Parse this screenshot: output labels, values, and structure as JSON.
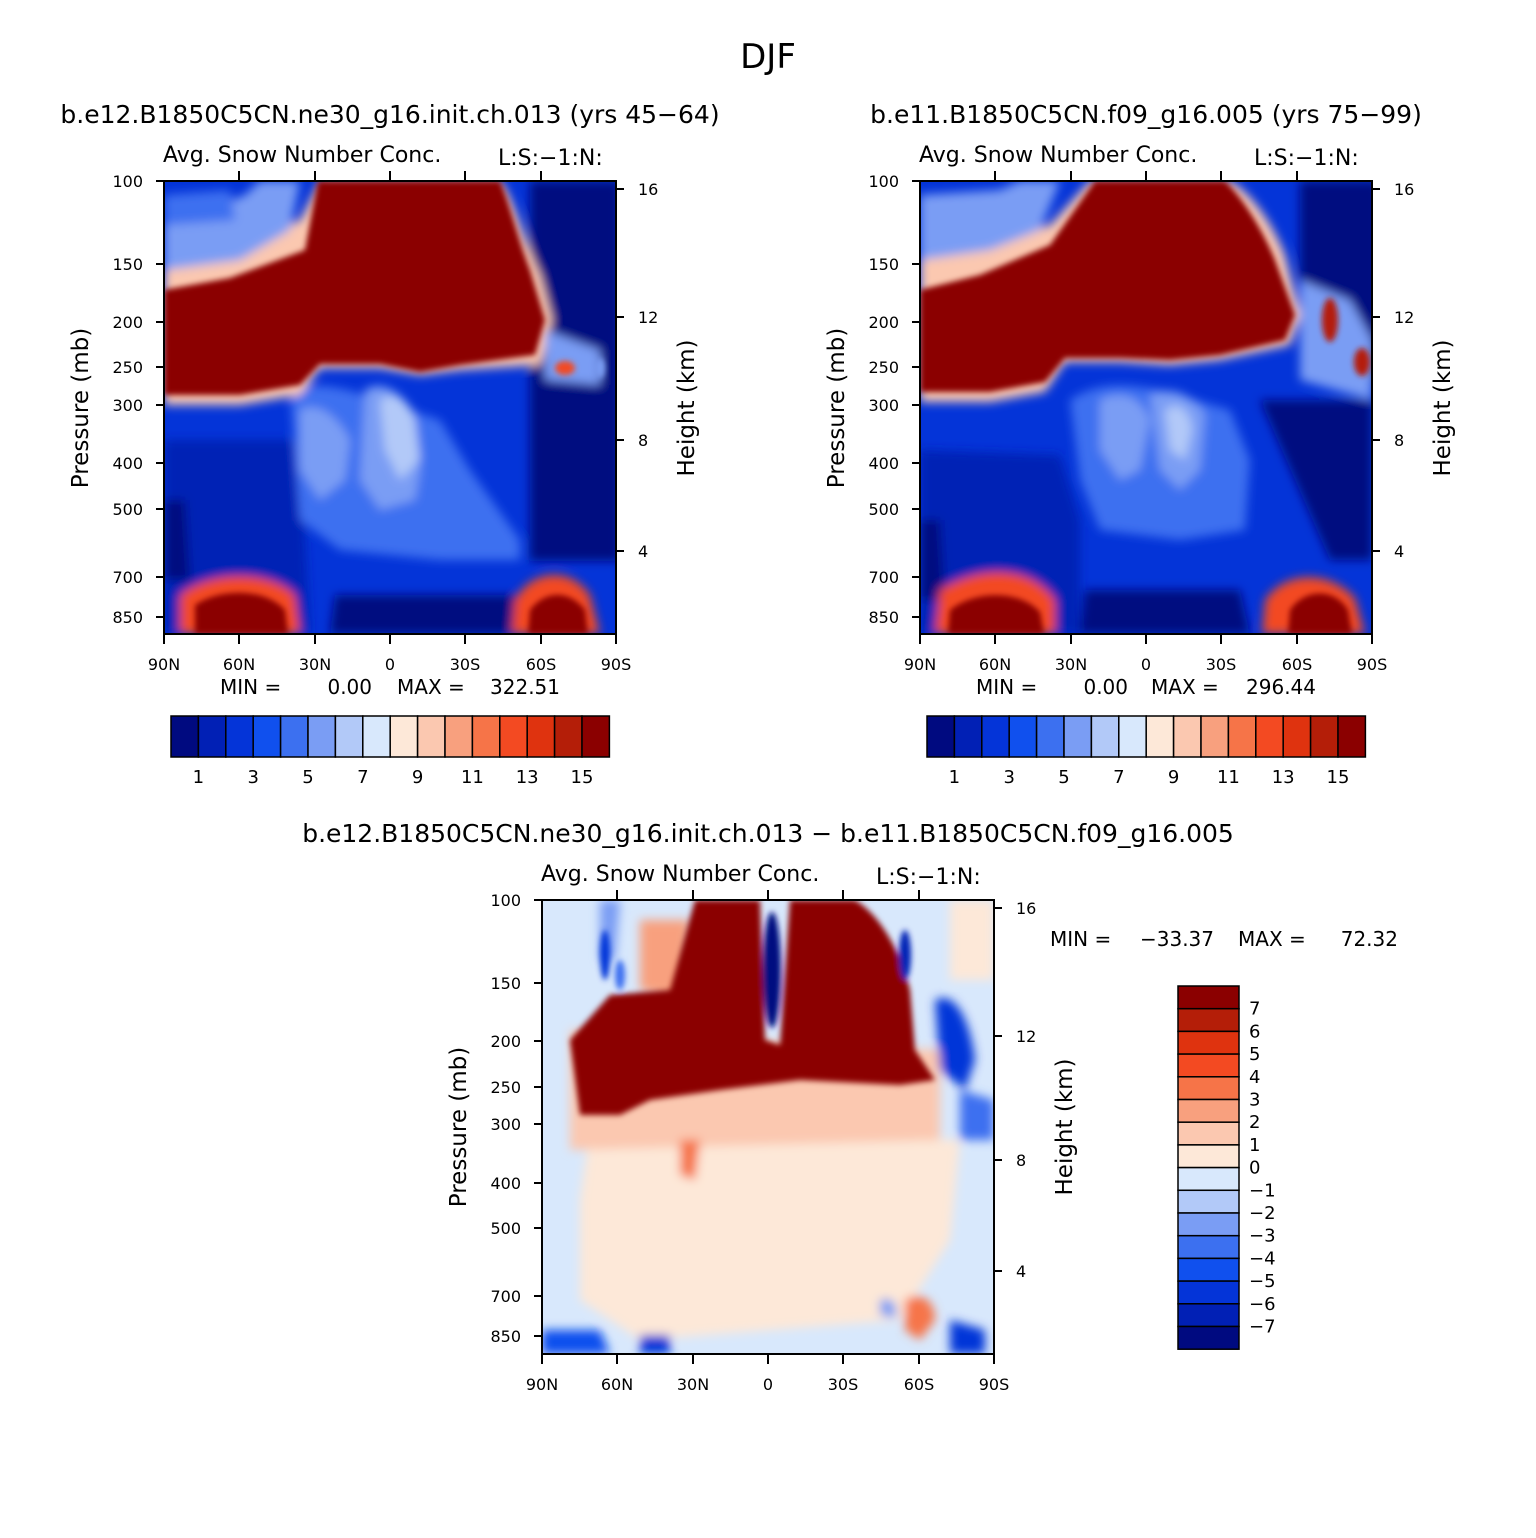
{
  "figure_title": "DJF",
  "chart_data": [
    {
      "type": "heatmap",
      "id": "panel-1",
      "case_title": "b.e12.B1850C5CN.ne30_g16.init.ch.013 (yrs 45-64)",
      "variable_title": "Avg. Snow Number Conc.",
      "right_tag": "L:S:-1:N:",
      "xlabel": "",
      "ylabel": "Pressure (mb)",
      "y2label": "Height (km)",
      "x_ticks": [
        "90N",
        "60N",
        "30N",
        "0",
        "30S",
        "60S",
        "90S"
      ],
      "y_ticks": [
        "100",
        "150",
        "200",
        "250",
        "300",
        "400",
        "500",
        "700",
        "850"
      ],
      "y2_ticks": [
        "16",
        "12",
        "8",
        "4"
      ],
      "xlim": [
        90,
        -90
      ],
      "ylim_mb": [
        100,
        1000
      ],
      "y_scale": "log",
      "min_label": "MIN =",
      "min_value": "0.00",
      "max_label": "MAX =",
      "max_value": "322.51",
      "colorbar": {
        "orientation": "horizontal",
        "levels": 15,
        "labels": [
          "1",
          "3",
          "5",
          "7",
          "9",
          "11",
          "13",
          "15"
        ],
        "colors": [
          "#000a80",
          "#0120b5",
          "#0434d8",
          "#1050ee",
          "#3c70f0",
          "#7a9df4",
          "#b2c9f8",
          "#d8e8fc",
          "#fde8d8",
          "#fbc8b0",
          "#f8a07e",
          "#f67448",
          "#f34a22",
          "#df330f",
          "#b41e08",
          "#8b0000"
        ]
      }
    },
    {
      "type": "heatmap",
      "id": "panel-2",
      "case_title": "b.e11.B1850C5CN.f09_g16.005 (yrs 75-99)",
      "variable_title": "Avg. Snow Number Conc.",
      "right_tag": "L:S:-1:N:",
      "xlabel": "",
      "ylabel": "Pressure (mb)",
      "y2label": "Height (km)",
      "x_ticks": [
        "90N",
        "60N",
        "30N",
        "0",
        "30S",
        "60S",
        "90S"
      ],
      "y_ticks": [
        "100",
        "150",
        "200",
        "250",
        "300",
        "400",
        "500",
        "700",
        "850"
      ],
      "y2_ticks": [
        "16",
        "12",
        "8",
        "4"
      ],
      "xlim": [
        90,
        -90
      ],
      "ylim_mb": [
        100,
        1000
      ],
      "y_scale": "log",
      "min_label": "MIN =",
      "min_value": "0.00",
      "max_label": "MAX =",
      "max_value": "296.44",
      "colorbar": {
        "orientation": "horizontal",
        "levels": 15,
        "labels": [
          "1",
          "3",
          "5",
          "7",
          "9",
          "11",
          "13",
          "15"
        ],
        "colors": [
          "#000a80",
          "#0120b5",
          "#0434d8",
          "#1050ee",
          "#3c70f0",
          "#7a9df4",
          "#b2c9f8",
          "#d8e8fc",
          "#fde8d8",
          "#fbc8b0",
          "#f8a07e",
          "#f67448",
          "#f34a22",
          "#df330f",
          "#b41e08",
          "#8b0000"
        ]
      }
    },
    {
      "type": "heatmap",
      "id": "panel-diff",
      "case_title": "b.e12.B1850C5CN.ne30_g16.init.ch.013 - b.e11.B1850C5CN.f09_g16.005",
      "variable_title": "Avg. Snow Number Conc.",
      "right_tag": "L:S:-1:N:",
      "xlabel": "",
      "ylabel": "Pressure (mb)",
      "y2label": "Height (km)",
      "x_ticks": [
        "90N",
        "60N",
        "30N",
        "0",
        "30S",
        "60S",
        "90S"
      ],
      "y_ticks": [
        "100",
        "150",
        "200",
        "250",
        "300",
        "400",
        "500",
        "700",
        "850"
      ],
      "y2_ticks": [
        "16",
        "12",
        "8",
        "4"
      ],
      "xlim": [
        90,
        -90
      ],
      "ylim_mb": [
        100,
        1000
      ],
      "y_scale": "log",
      "min_label": "MIN =",
      "min_value": "-33.37",
      "max_label": "MAX =",
      "max_value": "72.32",
      "colorbar": {
        "orientation": "vertical",
        "labels": [
          "7",
          "6",
          "5",
          "4",
          "3",
          "2",
          "1",
          "0",
          "-1",
          "-2",
          "-3",
          "-4",
          "-5",
          "-6",
          "-7"
        ],
        "colors": [
          "#8b0000",
          "#b41e08",
          "#df330f",
          "#f34a22",
          "#f67448",
          "#f8a07e",
          "#fbc8b0",
          "#fde8d8",
          "#d8e8fc",
          "#b2c9f8",
          "#7a9df4",
          "#3c70f0",
          "#1050ee",
          "#0434d8",
          "#0120b5",
          "#000a80"
        ]
      }
    }
  ]
}
